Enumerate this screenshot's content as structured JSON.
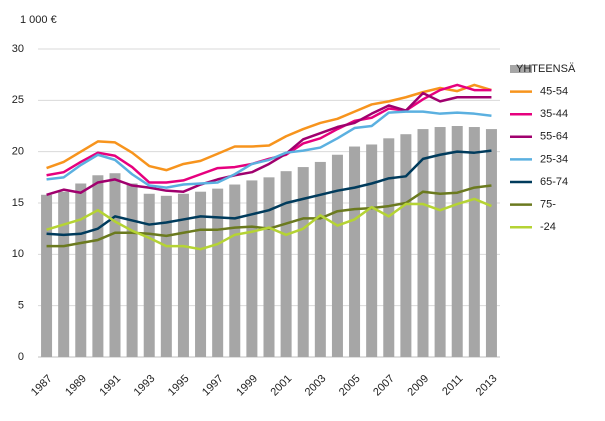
{
  "chart_data": {
    "type": "bar",
    "ylabel": "1 000 €",
    "categories": [
      "1987",
      null,
      "1989",
      null,
      "1991",
      null,
      "1993",
      null,
      "1995",
      null,
      "1997",
      null,
      "1999",
      null,
      "2001",
      null,
      "2003",
      null,
      "2005",
      null,
      "2007",
      null,
      "2009",
      null,
      "2011",
      null,
      "2013"
    ],
    "ylim": [
      0,
      30
    ],
    "yticks": [
      0,
      5,
      10,
      15,
      20,
      25,
      30
    ],
    "grid": true,
    "legend": "right",
    "series": [
      {
        "name": "YHTEENSÄ",
        "type": "bar",
        "color": "#a6a6a6",
        "values": [
          15.8,
          16.1,
          16.9,
          17.7,
          17.9,
          16.9,
          15.9,
          15.7,
          15.9,
          16.1,
          16.4,
          16.8,
          17.2,
          17.5,
          18.1,
          18.5,
          19.0,
          19.7,
          20.5,
          20.7,
          21.3,
          21.7,
          22.2,
          22.4,
          22.5,
          22.4,
          22.2
        ]
      },
      {
        "name": "45-54",
        "type": "line",
        "color": "#f7941d",
        "values": [
          18.4,
          19.0,
          20.0,
          21.0,
          20.9,
          19.9,
          18.6,
          18.2,
          18.8,
          19.1,
          19.8,
          20.5,
          20.5,
          20.6,
          21.5,
          22.2,
          22.8,
          23.2,
          23.9,
          24.6,
          24.9,
          25.3,
          25.8,
          26.2,
          25.9,
          26.5,
          26.0
        ]
      },
      {
        "name": "35-44",
        "type": "line",
        "color": "#e6007e",
        "values": [
          17.7,
          18.0,
          19.0,
          19.9,
          19.6,
          18.5,
          17.0,
          17.0,
          17.2,
          17.8,
          18.4,
          18.5,
          18.8,
          19.3,
          19.7,
          20.8,
          21.3,
          22.2,
          23.0,
          23.3,
          24.2,
          24.0,
          25.1,
          26.0,
          26.5,
          26.0,
          26.0
        ]
      },
      {
        "name": "55-64",
        "type": "line",
        "color": "#a0006e",
        "values": [
          15.8,
          16.3,
          16.0,
          17.0,
          17.3,
          16.7,
          16.5,
          16.2,
          16.1,
          16.8,
          17.3,
          17.7,
          18.0,
          18.8,
          19.8,
          21.2,
          21.8,
          22.4,
          22.8,
          23.7,
          24.5,
          24.0,
          25.7,
          24.9,
          25.3,
          25.3,
          25.3
        ]
      },
      {
        "name": "25-34",
        "type": "line",
        "color": "#5bb0e0",
        "values": [
          17.3,
          17.5,
          18.7,
          19.7,
          19.2,
          17.8,
          16.7,
          16.5,
          16.8,
          16.9,
          17.0,
          17.8,
          18.8,
          19.2,
          19.9,
          20.1,
          20.4,
          21.3,
          22.3,
          22.5,
          23.8,
          23.9,
          23.9,
          23.7,
          23.8,
          23.7,
          23.5
        ]
      },
      {
        "name": "65-74",
        "type": "line",
        "color": "#003b5c",
        "values": [
          12.0,
          11.9,
          12.0,
          12.5,
          13.7,
          13.3,
          12.9,
          13.1,
          13.4,
          13.7,
          13.6,
          13.5,
          13.9,
          14.3,
          15.0,
          15.4,
          15.8,
          16.2,
          16.5,
          16.9,
          17.4,
          17.6,
          19.3,
          19.7,
          20.0,
          19.9,
          20.1
        ]
      },
      {
        "name": "75-",
        "type": "line",
        "color": "#6b7a1f",
        "values": [
          10.8,
          10.8,
          11.1,
          11.4,
          12.1,
          12.1,
          12.0,
          11.8,
          12.1,
          12.4,
          12.4,
          12.6,
          12.7,
          12.5,
          13.0,
          13.5,
          13.5,
          14.2,
          14.4,
          14.5,
          14.7,
          15.0,
          16.1,
          15.9,
          16.0,
          16.5,
          16.7
        ]
      },
      {
        "name": "-24",
        "type": "line",
        "color": "#b5d334",
        "values": [
          12.4,
          12.9,
          13.4,
          14.3,
          13.2,
          12.3,
          11.6,
          10.8,
          10.8,
          10.5,
          11.0,
          11.9,
          12.2,
          12.6,
          11.9,
          12.5,
          13.8,
          12.8,
          13.4,
          14.6,
          13.7,
          14.9,
          14.9,
          14.3,
          14.9,
          15.4,
          14.7
        ]
      }
    ]
  }
}
